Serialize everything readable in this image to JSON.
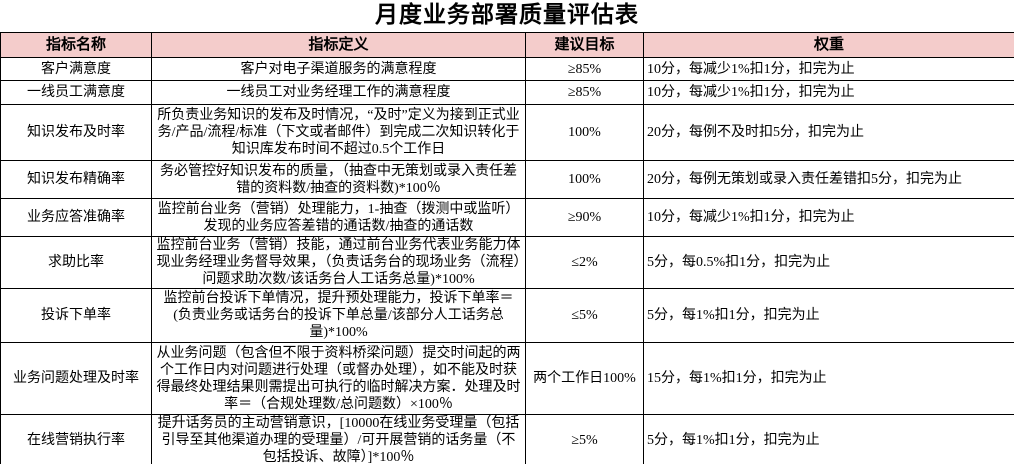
{
  "title": "月度业务部署质量评估表",
  "table": {
    "headers": [
      "指标名称",
      "指标定义",
      "建议目标",
      "权重"
    ],
    "rows": [
      {
        "name": "客户满意度",
        "definition": "客户对电子渠道服务的满意程度",
        "target": "≥85%",
        "weight": "10分，每减少1%扣1分，扣完为止"
      },
      {
        "name": "一线员工满意度",
        "definition": "一线员工对业务经理工作的满意程度",
        "target": "≥85%",
        "weight": "10分，每减少1%扣1分，扣完为止"
      },
      {
        "name": "知识发布及时率",
        "definition": "所负责业务知识的发布及时情况，“及时”定义为接到正式业务/产品/流程/标准（下文或者邮件）到完成二次知识转化于知识库发布时间不超过0.5个工作日",
        "target": "100%",
        "weight": "20分，每例不及时扣5分，扣完为止"
      },
      {
        "name": "知识发布精确率",
        "definition": "务必管控好知识发布的质量，（抽查中无策划或录入责任差错的资料数/抽查的资料数)*100％",
        "target": "100%",
        "weight": "20分，每例无策划或录入责任差错扣5分，扣完为止"
      },
      {
        "name": "业务应答准确率",
        "definition": "监控前台业务（营销）处理能力，1-抽查（拨测中或监听）发现的业务应答差错的通话数/抽查的通话数",
        "target": "≥90%",
        "weight": "10分，每减少1%扣1分，扣完为止"
      },
      {
        "name": "求助比率",
        "definition": "监控前台业务（营销）技能，通过前台业务代表业务能力体现业务经理业务督导效果，（负责话务台的现场业务（流程）问题求助次数/该话务台人工话务总量)*100%",
        "target": "≤2%",
        "weight": "5分，每0.5%扣1分，扣完为止"
      },
      {
        "name": "投诉下单率",
        "definition": "监控前台投诉下单情况，提升预处理能力，投诉下单率＝(负责业务或话务台的投诉下单总量/该部分人工话务总量)*100%",
        "target": "≤5%",
        "weight": "5分，每1%扣1分，扣完为止"
      },
      {
        "name": "业务问题处理及时率",
        "definition": "从业务问题（包含但不限于资料桥梁问题）提交时间起的两个工作日内对问题进行处理（或督办处理），如不能及时获得最终处理结果则需提出可执行的临时解决方案．处理及时率＝（合规处理数/总问题数）×100％",
        "target": "两个工作日100%",
        "weight": "15分，每1%扣1分，扣完为止"
      },
      {
        "name": "在线营销执行率",
        "definition": "提升话务员的主动营销意识，[10000在线业务受理量（包括引导至其他渠道办理的受理量）/可开展营销的话务量（不包括投诉、故障）]*100％",
        "target": "≥5%",
        "weight": "5分，每1%扣1分，扣完为止"
      }
    ]
  },
  "colors": {
    "header_bg": "#F4CCCB",
    "border": "#000000",
    "text": "#000000"
  }
}
